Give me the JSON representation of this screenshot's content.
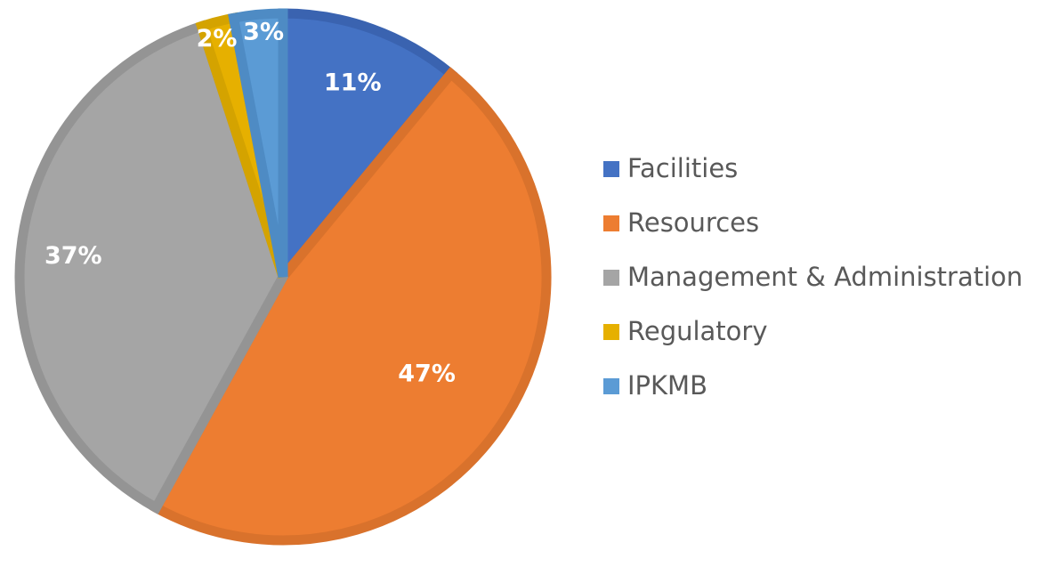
{
  "chart_data": {
    "type": "pie",
    "title": "",
    "categories": [
      "Facilities",
      "Resources",
      "Management & Administration",
      "Regulatory",
      "IPKMB"
    ],
    "values": [
      11,
      47,
      37,
      2,
      3
    ],
    "labels": [
      "11%",
      "47%",
      "37%",
      "2%",
      "3%"
    ],
    "colors": [
      "#4472c4",
      "#ed7d31",
      "#a5a5a5",
      "#e6b000",
      "#5b9bd5"
    ],
    "border_colors": [
      "#3a63b0",
      "#d9722c",
      "#949494",
      "#d4a300",
      "#4e8bc4"
    ],
    "legend_position": "right"
  }
}
